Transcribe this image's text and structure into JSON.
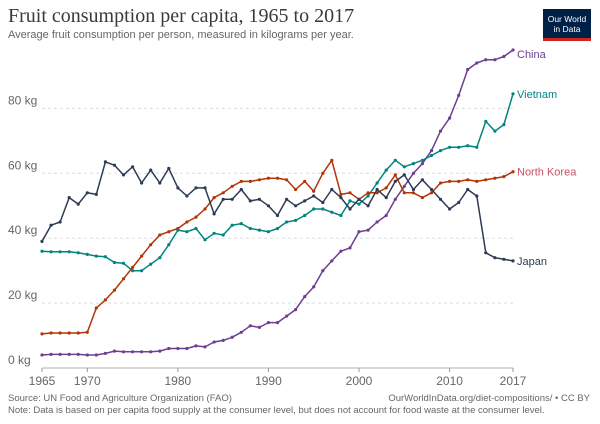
{
  "header": {
    "title": "Fruit consumption per capita, 1965 to 2017",
    "subtitle": "Average fruit consumption per person, measured in kilograms per year."
  },
  "logo": {
    "line1": "Our World",
    "line2": "in Data",
    "bg_color": "#002147",
    "accent_color": "#ce261e"
  },
  "footer": {
    "source": "Source: UN Food and Agriculture Organization (FAO)",
    "credit": "OurWorldInData.org/diet-compositions/ • CC BY",
    "note": "Note: Data is based on per capita food supply at the consumer level, but does not account for food waste at the consumer level."
  },
  "chart_data": {
    "type": "line",
    "title": "Fruit consumption per capita, 1965 to 2017",
    "subtitle": "Average fruit consumption per person, measured in kilograms per year.",
    "xlabel": "",
    "ylabel": "",
    "x_ticks": [
      "1965",
      "1970",
      "1980",
      "1990",
      "2000",
      "2010",
      "2017"
    ],
    "y_ticks": [
      "0 kg",
      "20 kg",
      "40 kg",
      "60 kg",
      "80 kg"
    ],
    "ylim": [
      0,
      98
    ],
    "xlim": [
      1965,
      2017
    ],
    "grid": "horizontal dashed",
    "legend": "inline labels at line ends",
    "x": [
      1965,
      1966,
      1967,
      1968,
      1969,
      1970,
      1971,
      1972,
      1973,
      1974,
      1975,
      1976,
      1977,
      1978,
      1979,
      1980,
      1981,
      1982,
      1983,
      1984,
      1985,
      1986,
      1987,
      1988,
      1989,
      1990,
      1991,
      1992,
      1993,
      1994,
      1995,
      1996,
      1997,
      1998,
      1999,
      2000,
      2001,
      2002,
      2003,
      2004,
      2005,
      2006,
      2007,
      2008,
      2009,
      2010,
      2011,
      2012,
      2013,
      2014,
      2015,
      2016,
      2017
    ],
    "series": [
      {
        "name": "China",
        "color": "#6d3e91",
        "values": [
          4.0,
          4.2,
          4.2,
          4.2,
          4.2,
          4.0,
          4.0,
          4.5,
          5.2,
          5.0,
          5.0,
          5.0,
          5.0,
          5.2,
          6.0,
          6.0,
          6.0,
          6.8,
          6.5,
          8.0,
          8.5,
          9.5,
          11.0,
          13.0,
          12.5,
          14.0,
          14.0,
          16.0,
          18.0,
          22.0,
          25.0,
          30.0,
          33.0,
          36.0,
          37.0,
          42.0,
          42.5,
          45.0,
          47.0,
          52.0,
          56.0,
          60.0,
          63.0,
          67.0,
          73.0,
          77.0,
          84.0,
          92.0,
          94.0,
          95.0,
          95.0,
          96.0,
          98.0
        ]
      },
      {
        "name": "Vietnam",
        "color": "#00847e",
        "values": [
          36.0,
          35.8,
          35.8,
          35.8,
          35.5,
          35.0,
          34.5,
          34.3,
          32.5,
          32.3,
          30.0,
          30.0,
          32.0,
          34.0,
          38.0,
          42.5,
          42.0,
          43.0,
          39.5,
          41.5,
          41.0,
          44.0,
          44.5,
          43.0,
          42.5,
          42.0,
          43.0,
          45.0,
          45.5,
          47.0,
          49.0,
          49.0,
          48.0,
          47.0,
          51.5,
          50.5,
          53.0,
          57.0,
          61.0,
          64.0,
          62.0,
          63.0,
          64.0,
          65.5,
          67.0,
          68.0,
          68.0,
          68.5,
          68.0,
          76.0,
          73.0,
          75.0,
          84.5
        ]
      },
      {
        "name": "North Korea",
        "color": "#c15065",
        "line_color": "#b13507",
        "values": [
          10.5,
          10.8,
          10.8,
          10.8,
          10.8,
          11.0,
          18.5,
          21.0,
          24.0,
          27.5,
          31.0,
          34.5,
          38.0,
          41.0,
          42.0,
          43.0,
          45.0,
          46.5,
          49.0,
          52.5,
          54.0,
          56.0,
          57.5,
          57.5,
          58.0,
          58.5,
          58.5,
          58.0,
          55.0,
          57.5,
          54.5,
          60.0,
          64.0,
          53.5,
          54.0,
          52.0,
          54.0,
          54.0,
          55.5,
          59.5,
          54.0,
          54.0,
          52.5,
          54.0,
          57.0,
          57.5,
          57.5,
          58.0,
          57.5,
          58.0,
          58.5,
          59.0,
          60.5
        ]
      },
      {
        "name": "Japan",
        "color": "#2d3b55",
        "values": [
          39.0,
          44.0,
          45.0,
          52.5,
          50.5,
          54.0,
          53.5,
          63.5,
          62.5,
          59.5,
          62.0,
          57.0,
          61.0,
          57.0,
          61.5,
          55.5,
          53.0,
          55.5,
          55.5,
          47.5,
          52.0,
          52.0,
          55.0,
          51.5,
          52.0,
          50.0,
          47.0,
          52.0,
          50.0,
          51.5,
          53.0,
          51.0,
          55.0,
          52.5,
          49.0,
          52.0,
          50.0,
          55.0,
          52.5,
          57.5,
          59.5,
          55.0,
          58.0,
          55.0,
          52.0,
          49.0,
          51.0,
          55.0,
          53.0,
          35.5,
          34.0,
          33.5,
          33.0
        ]
      }
    ]
  }
}
